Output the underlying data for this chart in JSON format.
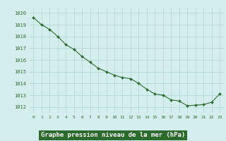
{
  "x": [
    0,
    1,
    2,
    3,
    4,
    5,
    6,
    7,
    8,
    9,
    10,
    11,
    12,
    13,
    14,
    15,
    16,
    17,
    18,
    19,
    20,
    21,
    22,
    23
  ],
  "y": [
    1019.6,
    1019.0,
    1018.6,
    1018.0,
    1017.3,
    1016.9,
    1016.3,
    1015.8,
    1015.3,
    1015.0,
    1014.7,
    1014.5,
    1014.4,
    1014.0,
    1013.5,
    1013.1,
    1013.0,
    1012.6,
    1012.5,
    1012.1,
    1012.15,
    1012.2,
    1012.4,
    1013.1
  ],
  "ylim": [
    1011.5,
    1020.5
  ],
  "yticks": [
    1012,
    1013,
    1014,
    1015,
    1016,
    1017,
    1018,
    1019,
    1020
  ],
  "xticks": [
    0,
    1,
    2,
    3,
    4,
    5,
    6,
    7,
    8,
    9,
    10,
    11,
    12,
    13,
    14,
    15,
    16,
    17,
    18,
    19,
    20,
    21,
    22,
    23
  ],
  "line_color": "#2d6a2d",
  "marker_color": "#2d6a2d",
  "bg_color": "#d4eeee",
  "grid_color": "#aed4d4",
  "tick_color": "#2d6a2d",
  "xlabel": "Graphe pression niveau de la mer (hPa)",
  "xlabel_bg": "#2d6a2d",
  "xlabel_text_color": "#ffffff"
}
